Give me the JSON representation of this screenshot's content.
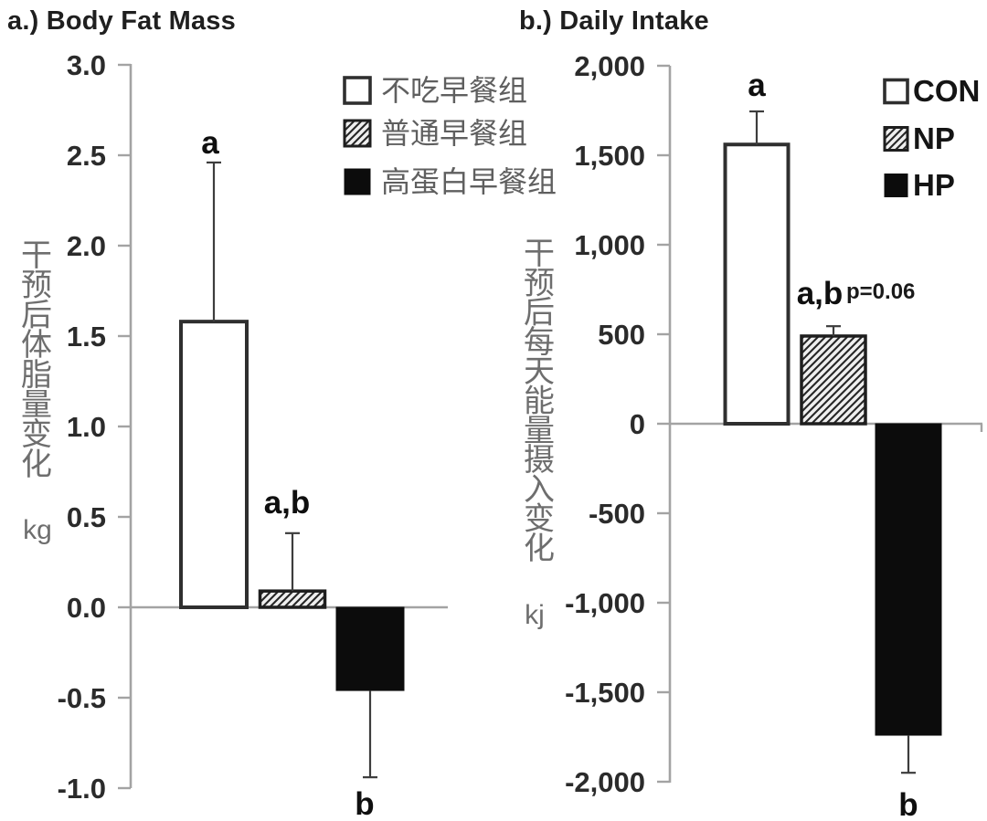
{
  "figure": {
    "background": "#ffffff",
    "axis_color": "#a3a3a3",
    "tick_text_color": "#2b2b2b",
    "muted_text_color": "#6e6e6e",
    "bar_black": "#0c0c0c",
    "bar_white": "#ffffff"
  },
  "chart_data": [
    {
      "type": "bar",
      "panel": "a",
      "title": "a.) Body Fat Mass",
      "ylabel": "干预后体脂量变化",
      "unit": "kg",
      "ylim": [
        -1.0,
        3.0
      ],
      "ytick_values": [
        3.0,
        2.5,
        2.0,
        1.5,
        1.0,
        0.5,
        0.0,
        -0.5,
        -1.0
      ],
      "ytick_labels": [
        "3.0",
        "2.5",
        "2.0",
        "1.5",
        "1.0",
        "0.5",
        "0.0",
        "-0.5",
        "-1.0"
      ],
      "categories": [
        "不吃早餐组",
        "普通早餐组",
        "高蛋白早餐组"
      ],
      "values": [
        1.58,
        0.09,
        -0.46
      ],
      "errors": [
        0.88,
        0.32,
        0.48
      ],
      "bar_styles": [
        "open",
        "hatched",
        "solid"
      ],
      "sig_labels": [
        "a",
        "a,b",
        "b"
      ],
      "annotations": [],
      "legend": {
        "position": "upper-right",
        "entries": [
          "不吃早餐组",
          "普通早餐组",
          "高蛋白早餐组"
        ]
      },
      "grid": false
    },
    {
      "type": "bar",
      "panel": "b",
      "title": "b.) Daily Intake",
      "ylabel": "干预后每天能量摄入变化",
      "unit": "kj",
      "ylim": [
        -2000,
        2000
      ],
      "ytick_values": [
        2000,
        1500,
        1000,
        500,
        0,
        -500,
        -1000,
        -1500,
        -2000
      ],
      "ytick_labels": [
        "2,000",
        "1,500",
        "1,000",
        "500",
        "0",
        "-500",
        "-1,000",
        "-1,500",
        "-2,000"
      ],
      "categories": [
        "CON",
        "NP",
        "HP"
      ],
      "values": [
        1560,
        490,
        -1740
      ],
      "errors": [
        185,
        55,
        210
      ],
      "bar_styles": [
        "open",
        "hatched",
        "solid"
      ],
      "sig_labels": [
        "a",
        "a,b",
        "b"
      ],
      "annotations": [
        {
          "text": "p=0.06",
          "bar_index": 1
        }
      ],
      "legend": {
        "position": "upper-right",
        "entries": [
          "CON",
          "NP",
          "HP"
        ]
      },
      "grid": false
    }
  ]
}
